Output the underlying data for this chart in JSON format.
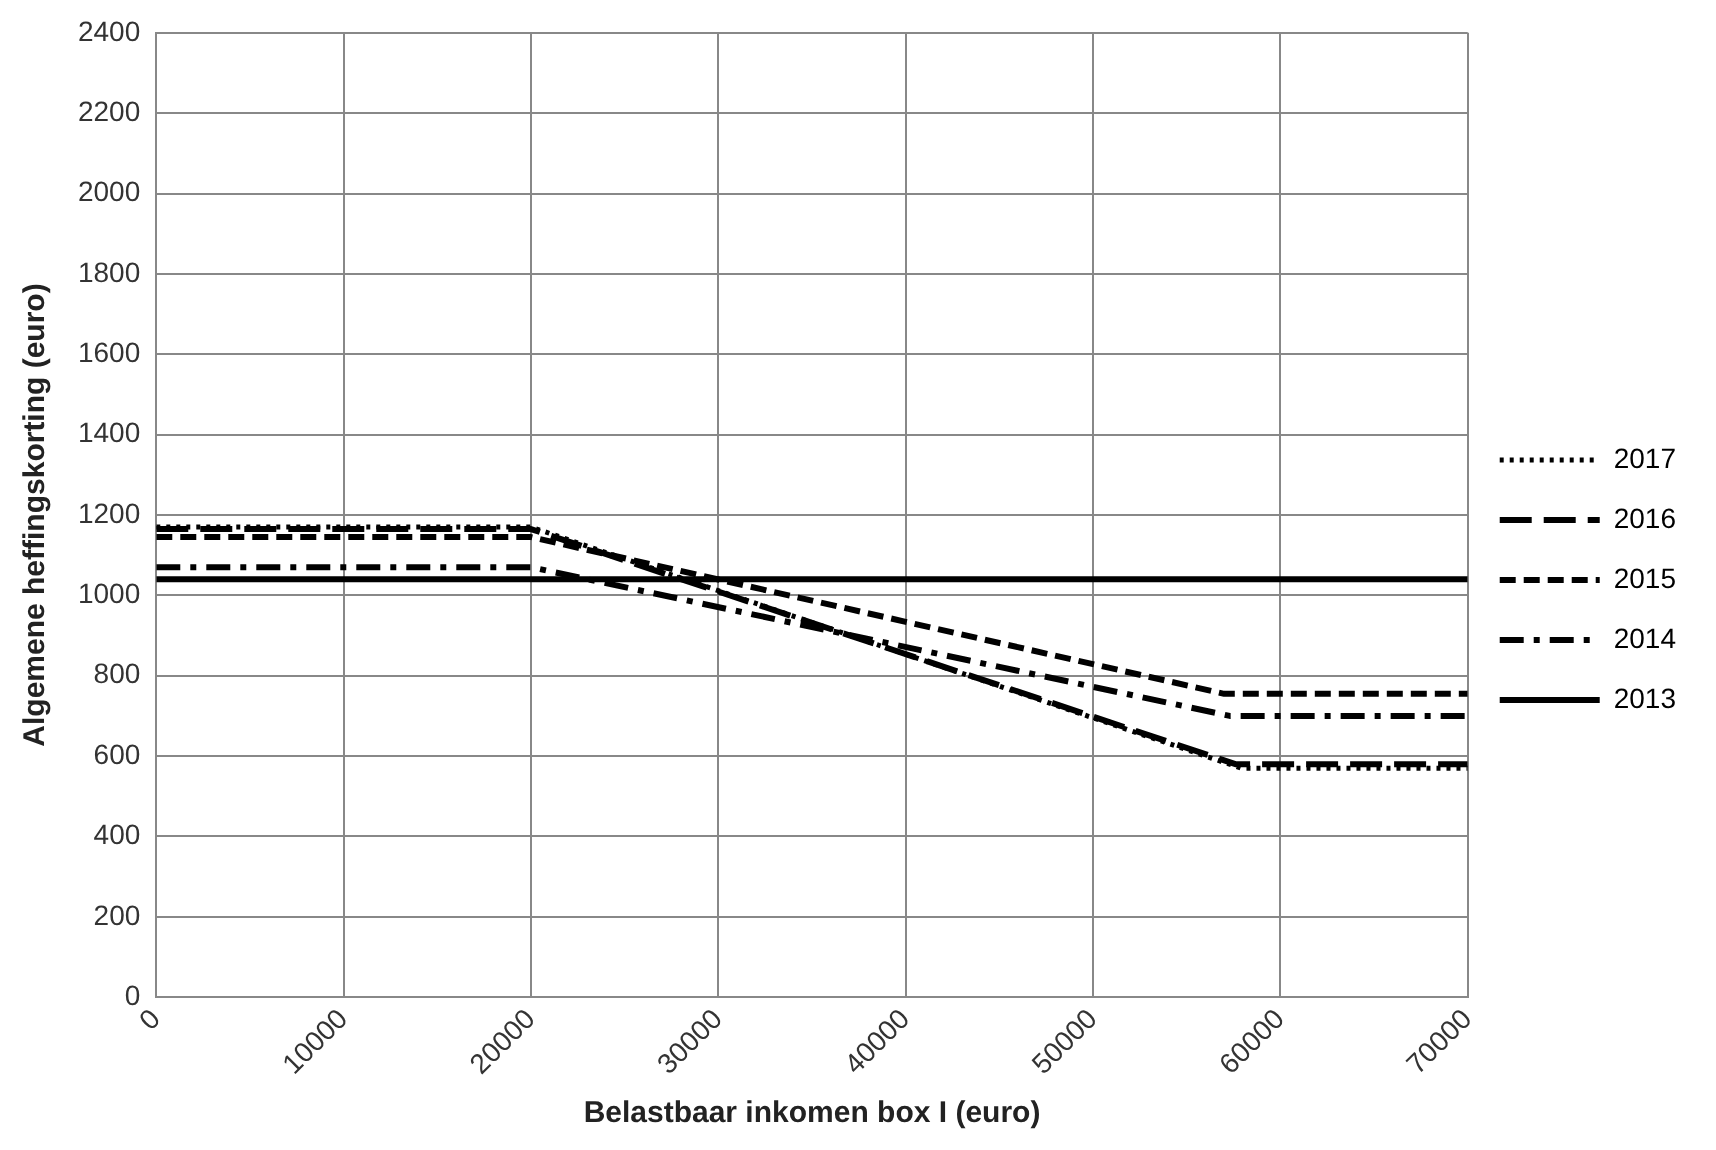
{
  "chart_data": {
    "type": "line",
    "xlabel": "Belastbaar inkomen box I (euro)",
    "ylabel": "Algemene heffingskorting (euro)",
    "xlim": [
      0,
      70000
    ],
    "xticks": [
      0,
      10000,
      20000,
      30000,
      40000,
      50000,
      60000,
      70000
    ],
    "ylim": [
      0,
      2400
    ],
    "yticks": [
      0,
      200,
      400,
      600,
      800,
      1000,
      1200,
      1400,
      1600,
      1800,
      2000,
      2200,
      2400
    ],
    "grid": true,
    "legend": "right",
    "marker": "none",
    "series": [
      {
        "name": "2017",
        "color": "#000000",
        "line_style": "dotted",
        "x": [
          0,
          20000,
          57900,
          70000
        ],
        "values": [
          1170,
          1170,
          570,
          570
        ]
      },
      {
        "name": "2016",
        "color": "#000000",
        "line_style": "longdash",
        "x": [
          0,
          20000,
          57600,
          70000
        ],
        "values": [
          1165,
          1165,
          580,
          580
        ]
      },
      {
        "name": "2015",
        "color": "#000000",
        "line_style": "dashed",
        "x": [
          0,
          20000,
          57000,
          70000
        ],
        "values": [
          1145,
          1145,
          755,
          755
        ]
      },
      {
        "name": "2014",
        "color": "#000000",
        "line_style": "dashdot",
        "x": [
          0,
          20000,
          57300,
          70000
        ],
        "values": [
          1070,
          1070,
          700,
          700
        ]
      },
      {
        "name": "2013",
        "color": "#000000",
        "line_style": "solid",
        "x": [
          0,
          70000
        ],
        "values": [
          1040,
          1040
        ]
      }
    ]
  }
}
